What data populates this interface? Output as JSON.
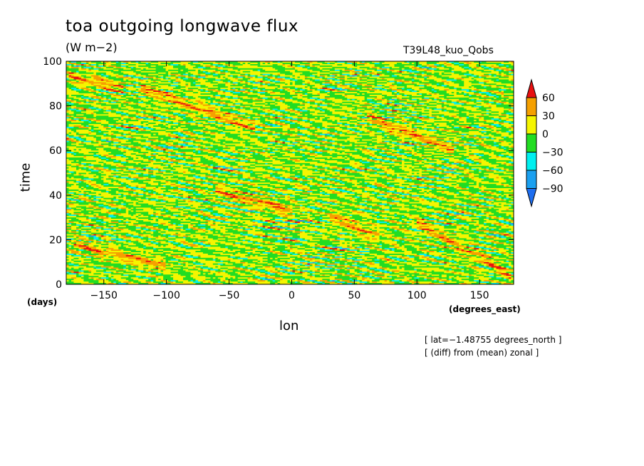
{
  "chart_data": {
    "type": "heatmap",
    "title": "toa outgoing longwave flux",
    "units": "(W m−2)",
    "subtitle": "T39L48_kuo_Qobs",
    "xlabel": "lon",
    "ylabel": "time",
    "x_units": "(degrees_east)",
    "y_units": "(days)",
    "xlim": [
      -180,
      177.2
    ],
    "ylim": [
      0,
      100
    ],
    "x_ticks": [
      -150,
      -100,
      -50,
      0,
      50,
      100,
      150
    ],
    "x_tick_labels": [
      "−150",
      "−100",
      "−50",
      "0",
      "50",
      "100",
      "150"
    ],
    "y_ticks": [
      0,
      20,
      40,
      60,
      80,
      100
    ],
    "y_tick_labels": [
      "0",
      "20",
      "40",
      "60",
      "80",
      "100"
    ],
    "colorbar": {
      "levels": [
        -90,
        -60,
        -30,
        0,
        30,
        60
      ],
      "labels": [
        "−90",
        "−60",
        "−30",
        "0",
        "30",
        "60"
      ],
      "colors": [
        "#1e6ef0",
        "#1aa0f0",
        "#00f0f0",
        "#22dd22",
        "#f5f500",
        "#f5a000",
        "#e81010"
      ]
    },
    "annotations": [
      "[ lat=−1.48755 degrees_north ]",
      "[ (diff) from (mean) zonal ]"
    ],
    "features": [
      {
        "type": "positive_streak",
        "lon_start": -178,
        "lon_end": -135,
        "day_start": 93,
        "day_end": 88
      },
      {
        "type": "positive_streak",
        "lon_start": -175,
        "lon_end": -100,
        "day_start": 18,
        "day_end": 8
      },
      {
        "type": "positive_streak",
        "lon_start": -60,
        "lon_end": 0,
        "day_start": 42,
        "day_end": 33
      },
      {
        "type": "positive_streak",
        "lon_start": 30,
        "lon_end": 70,
        "day_start": 31,
        "day_end": 21
      },
      {
        "type": "positive_streak",
        "lon_start": 100,
        "lon_end": 175,
        "day_start": 28,
        "day_end": 4
      },
      {
        "type": "positive_streak",
        "lon_start": -120,
        "lon_end": -30,
        "day_start": 88,
        "day_end": 70
      },
      {
        "type": "positive_streak",
        "lon_start": 60,
        "lon_end": 130,
        "day_start": 75,
        "day_end": 60
      }
    ]
  }
}
